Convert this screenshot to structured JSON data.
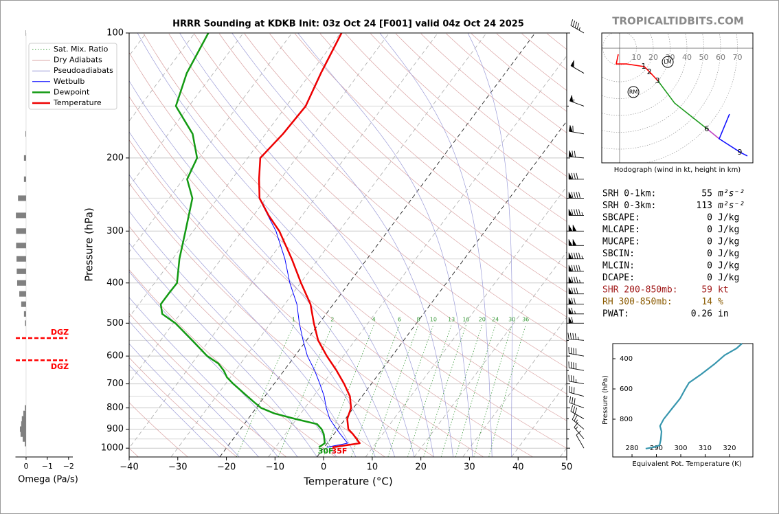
{
  "site_label": "TROPICALTIDBITS.COM",
  "chart_data": [
    {
      "type": "skewt",
      "title": "HRRR Sounding at KDKB Init: 03z Oct 24 [F001] valid 04z Oct 24 2025",
      "xlabel": "Temperature (°C)",
      "ylabel": "Pressure (hPa)",
      "xlim": [
        -40,
        50
      ],
      "ylim": [
        1050,
        100
      ],
      "log_y": true,
      "xticks": [
        {
          "value": -40,
          "label": "−40"
        },
        {
          "value": -30,
          "label": "−30"
        },
        {
          "value": -20,
          "label": "−20"
        },
        {
          "value": -10,
          "label": "−10"
        },
        0,
        10,
        20,
        30,
        40,
        50
      ],
      "yticks": [
        100,
        200,
        300,
        400,
        500,
        600,
        700,
        800,
        900,
        1000
      ],
      "minor_yticks": [
        150,
        250,
        350,
        450,
        550,
        650,
        750,
        850,
        950
      ],
      "grid": true,
      "reference_lines": [
        {
          "name": "Sat. Mix. Ratio",
          "color": "#3a9a3a",
          "style": "dotted"
        },
        {
          "name": "Dry Adiabats",
          "color": "#d9a0a0",
          "style": "solid"
        },
        {
          "name": "Pseudoadiabats",
          "color": "#9c9cd8",
          "style": "solid"
        }
      ],
      "series": [
        {
          "name": "Wetbulb",
          "color": "#0000ff",
          "width": 1,
          "y": [
            995,
            973,
            925,
            900,
            850,
            800,
            750,
            700,
            650,
            600,
            550,
            500,
            450,
            400,
            350,
            300,
            250,
            200,
            175,
            150,
            125,
            100
          ],
          "values": [
            0.5,
            4.2,
            1.3,
            -0.2,
            -3.2,
            -5.6,
            -7.8,
            -10.6,
            -13.7,
            -17.4,
            -20.7,
            -24.1,
            -27.5,
            -32.2,
            -36.9,
            -43,
            -51.5,
            -57.5,
            -56.5,
            -56.1,
            -58,
            -59.9
          ]
        },
        {
          "name": "Dewpoint",
          "color": "#139a13",
          "width": 2.5,
          "y": [
            995,
            973,
            925,
            900,
            875,
            850,
            825,
            800,
            775,
            750,
            700,
            675,
            650,
            625,
            600,
            550,
            500,
            475,
            450,
            425,
            400,
            350,
            300,
            250,
            225,
            200,
            175,
            150,
            125,
            100
          ],
          "values": [
            -1.1,
            -0.5,
            -2.1,
            -3.3,
            -5.0,
            -10.3,
            -15.4,
            -19.0,
            -21.3,
            -23.6,
            -28.4,
            -30.7,
            -32.4,
            -34.6,
            -38,
            -43.5,
            -49.6,
            -53.7,
            -55.5,
            -55.5,
            -55.4,
            -58.6,
            -61.6,
            -65.2,
            -69.2,
            -70.4,
            -75,
            -82.7,
            -85.5,
            -87.2
          ]
        },
        {
          "name": "Temperature",
          "color": "#ee0000",
          "width": 2.5,
          "y": [
            995,
            973,
            925,
            900,
            850,
            800,
            750,
            700,
            650,
            600,
            550,
            500,
            450,
            400,
            350,
            300,
            275,
            250,
            225,
            200,
            175,
            150,
            125,
            100
          ],
          "values": [
            1.7,
            6.7,
            3.9,
            2.2,
            0.4,
            -0.5,
            -2.5,
            -5.6,
            -9.2,
            -13.4,
            -17.6,
            -21.1,
            -24.7,
            -29.9,
            -35.5,
            -42.3,
            -46.9,
            -51.4,
            -54.4,
            -57.4,
            -56.4,
            -56,
            -57.9,
            -59.8
          ]
        }
      ],
      "mixing_ratio_labels": [
        1,
        2,
        4,
        6,
        8,
        10,
        13,
        16,
        20,
        24,
        30,
        36
      ],
      "annotations": [
        {
          "text": "30F",
          "color": "#139a13"
        },
        {
          "text": "35F",
          "color": "#ee0000"
        }
      ],
      "wind_barbs": {
        "pressure": [
          100,
          125,
          150,
          175,
          200,
          225,
          250,
          275,
          300,
          325,
          350,
          375,
          400,
          425,
          450,
          475,
          500,
          550,
          600,
          650,
          700,
          750,
          800,
          850,
          900,
          950,
          1000
        ],
        "speed": [
          45,
          50,
          55,
          60,
          70,
          80,
          90,
          95,
          100,
          100,
          95,
          90,
          85,
          80,
          70,
          65,
          60,
          45,
          40,
          40,
          35,
          30,
          30,
          30,
          25,
          15,
          10
        ],
        "direction": [
          300,
          300,
          290,
          280,
          275,
          270,
          270,
          270,
          270,
          270,
          270,
          270,
          270,
          270,
          270,
          270,
          270,
          275,
          280,
          280,
          280,
          285,
          290,
          300,
          310,
          320,
          330
        ]
      }
    },
    {
      "type": "hbar",
      "xlabel": "Omega (Pa/s)",
      "xlim": [
        0.5,
        -2.2
      ],
      "ylim": [
        1050,
        100
      ],
      "log_y": true,
      "xticks": [
        0,
        {
          "value": -1,
          "label": "−1"
        },
        {
          "value": -2,
          "label": "−2"
        }
      ],
      "color": "#808080",
      "y": [
        100,
        175,
        200,
        225,
        250,
        275,
        300,
        325,
        350,
        375,
        400,
        425,
        450,
        475,
        500,
        800,
        825,
        850,
        875,
        900,
        925,
        950,
        975
      ],
      "values": [
        0.02,
        0.03,
        0.1,
        0.1,
        0.38,
        0.48,
        0.47,
        0.47,
        0.45,
        0.44,
        0.42,
        0.32,
        0.23,
        0.1,
        0.05,
        0.06,
        0.13,
        0.2,
        0.23,
        0.29,
        0.26,
        0.16,
        0.06
      ],
      "dgz": [
        {
          "label": "DGZ",
          "pressure": 543,
          "color": "#ff0000"
        },
        {
          "label": "DGZ",
          "pressure": 614,
          "color": "#ff0000"
        }
      ]
    },
    {
      "type": "hodograph",
      "caption": "Hodograph (wind in kt, height in km)",
      "xlim": [
        -10.6,
        79.2
      ],
      "ylim": [
        -68.2,
        9
      ],
      "rings": [
        10,
        20,
        30,
        40,
        50,
        60,
        70
      ],
      "segments": [
        {
          "color": "#ff0000",
          "u": [
            -0.8,
            -2,
            4.1,
            14.7,
            18,
            22.9
          ],
          "v": [
            -3.7,
            -9.4,
            -9.4,
            -11,
            -14.3,
            -19.6
          ]
        },
        {
          "color": "#1d9a1d",
          "u": [
            22.9,
            32.7,
            52.2
          ],
          "v": [
            -19.6,
            -32.7,
            -48.2
          ]
        },
        {
          "color": "#c040c0",
          "u": [
            52.2,
            59.2
          ],
          "v": [
            -48.2,
            -53.9
          ]
        },
        {
          "color": "#1010ff",
          "u": [
            65.3,
            59.2,
            71.8,
            75.9
          ],
          "v": [
            -39.2,
            -53.9,
            -62,
            -64.1
          ]
        }
      ],
      "height_labels": [
        {
          "label": "1",
          "u": 14.7,
          "v": -11
        },
        {
          "label": "2",
          "u": 18,
          "v": -14.3
        },
        {
          "label": "3",
          "u": 22.9,
          "v": -19.6
        },
        {
          "label": "6",
          "u": 52.2,
          "v": -48.2
        },
        {
          "label": "9",
          "u": 71.8,
          "v": -62
        }
      ],
      "storm_motion": [
        {
          "label": "LM",
          "u": 28.6,
          "v": -8.2
        },
        {
          "label": "RM",
          "u": 8.2,
          "v": -26.1
        }
      ]
    },
    {
      "type": "line",
      "xlabel": "Equivalent Pot. Temperature (K)",
      "ylabel": "Pressure (hPa)",
      "xlim": [
        272.1,
        329.6
      ],
      "ylim": [
        1050,
        300
      ],
      "xticks": [
        280,
        290,
        300,
        310,
        320
      ],
      "yticks": [
        400,
        600,
        800
      ],
      "color": "#3796ae",
      "values": [
        325.1,
        322.9,
        318,
        313.8,
        308.2,
        303.4,
        301.7,
        299.7,
        296.3,
        293,
        291.5,
        292.1,
        291.8,
        291.3,
        288.7,
        285.6
      ],
      "y": [
        300,
        332,
        377,
        436,
        505,
        559,
        605,
        664,
        732,
        800,
        845,
        882,
        936,
        973,
        986,
        995
      ]
    }
  ],
  "indices": {
    "rows": [
      {
        "label": "SRH 0-1km:",
        "value": 55,
        "unit": "m²s⁻²"
      },
      {
        "label": "SRH 0-3km:",
        "value": 113,
        "unit": "m²s⁻²"
      },
      {
        "label": "SBCAPE:",
        "value": 0,
        "unit": "J/kg"
      },
      {
        "label": "MLCAPE:",
        "value": 0,
        "unit": "J/kg"
      },
      {
        "label": "MUCAPE:",
        "value": 0,
        "unit": "J/kg"
      },
      {
        "label": "SBCIN:",
        "value": 0,
        "unit": "J/kg"
      },
      {
        "label": "MLCIN:",
        "value": 0,
        "unit": "J/kg"
      },
      {
        "label": "DCAPE:",
        "value": 0,
        "unit": "J/kg"
      },
      {
        "label": "SHR 200-850mb:",
        "value": 59,
        "unit": "kt",
        "color": "#a01818"
      },
      {
        "label": "RH 300-850mb:",
        "value": 14,
        "unit": "%",
        "color": "#8a5a00"
      },
      {
        "label": "PWAT:",
        "value": 0.26,
        "unit": "in"
      }
    ]
  }
}
